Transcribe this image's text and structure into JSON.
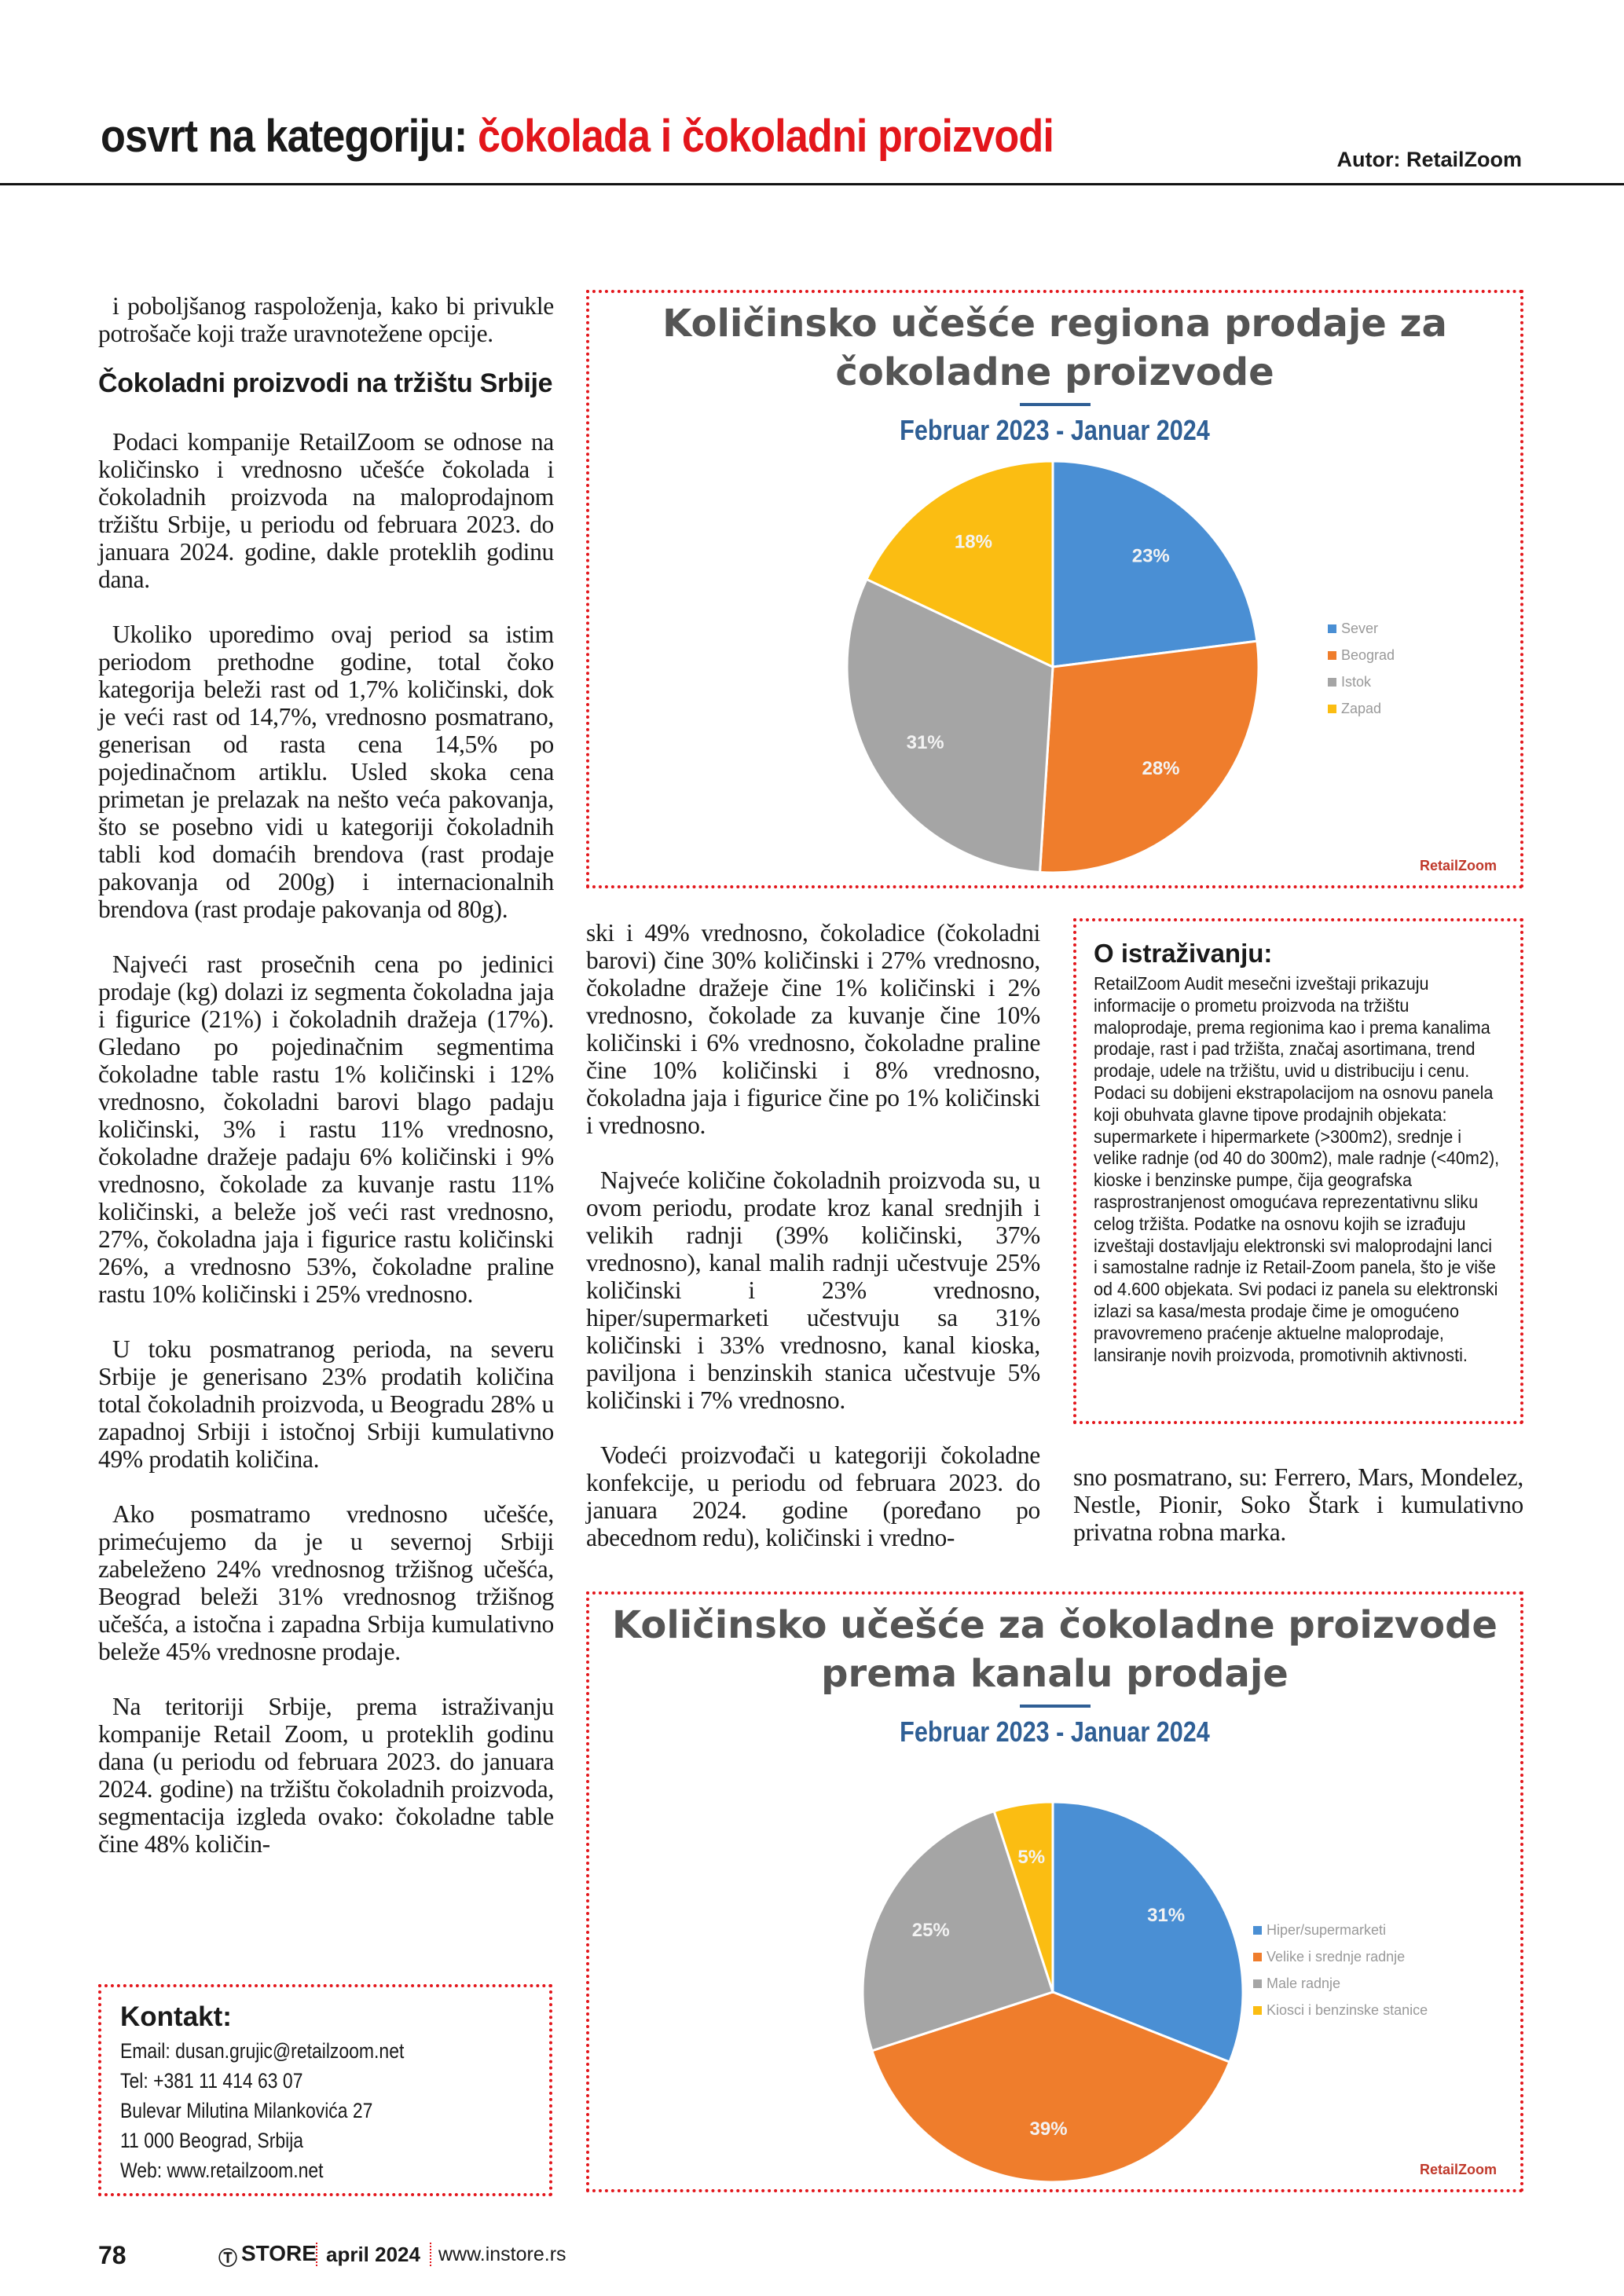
{
  "header": {
    "title_prefix": "osvrt na kategoriju:",
    "title_topic": "čokolada i čokoladni proizvodi",
    "author": "Autor: RetailZoom"
  },
  "left": {
    "intro": "i poboljšanog raspoloženja, kako bi privukle potrošače koji traže uravnotežene opcije.",
    "heading": "Čokoladni proizvodi na tržištu Srbije",
    "paragraphs": [
      "Podaci kompanije RetailZoom se odnose na količinsko i vrednosno učešće čokolada i čokoladnih proizvoda na maloprodajnom tržištu Srbije, u periodu od februara 2023. do januara 2024. godine, dakle proteklih godinu dana.",
      "Ukoliko uporedimo ovaj period sa istim periodom prethodne godine, total čoko kategorija beleži rast od 1,7% količinski, dok je veći rast od 14,7%, vrednosno posmatrano, generisan od rasta cena 14,5% po pojedinačnom artiklu. Usled skoka cena primetan je prelazak na nešto veća pakovanja, što se posebno vidi u kategoriji čokoladnih tabli kod domaćih brendova (rast prodaje pakovanja od 200g) i internacionalnih brendova (rast prodaje pakovanja od 80g).",
      "Najveći rast prosečnih cena po jedinici prodaje (kg) dolazi iz segmenta čokoladna jaja i figurice (21%) i čokoladnih dražeja (17%). Gledano po pojedinačnim segmentima čokoladne table rastu 1% količinski i 12% vrednosno, čokoladni barovi blago padaju količinski, 3% i rastu 11% vrednosno, čokoladne dražeje padaju 6% količinski i 9% vrednosno, čokolade za kuvanje rastu 11% količinski, a beleže još veći rast vrednosno, 27%, čokoladna jaja i figurice rastu količinski 26%, a vrednosno 53%, čokoladne praline rastu 10% količinski i 25% vrednosno.",
      "U toku posmatranog perioda, na severu Srbije je generisano 23% prodatih količina total čokoladnih proizvoda, u Beogradu 28% u zapadnoj Srbiji i istočnoj Srbiji kumulativno 49% prodatih količina.",
      "Ako posmatramo vrednosno učešće, primećujemo da je u severnoj Srbiji zabeleženo 24% vrednosnog tržišnog učešća, Beograd beleži 31% vrednosnog tržišnog učešća, a istočna i zapadna Srbija kumulativno beleže 45% vrednosne prodaje.",
      "Na teritoriji Srbije, prema istraživanju kompanije Retail Zoom, u proteklih godinu dana (u periodu od februara 2023. do januara 2024. godine) na tržištu čokoladnih proizvoda, segmentacija izgleda ovako: čokoladne table čine 48% količin-"
    ]
  },
  "middle": {
    "paragraphs": [
      "ski i 49% vrednosno, čokoladice (čokoladni barovi) čine 30% količinski i 27% vrednosno, čokoladne dražeje čine 1% količinski i 2% vrednosno, čokolade za kuvanje čine 10% količinski i 6% vrednosno, čokoladne praline čine 10% količinski i 8% vrednosno, čokoladna jaja i figurice čine po 1% količinski i vrednosno.",
      "Najveće količine čokoladnih proizvoda su, u ovom periodu, prodate kroz kanal srednjih i velikih radnji (39% količinski, 37% vrednosno), kanal malih radnji učestvuje 25% količinski i 23% vrednosno, hiper/supermarketi učestvuju sa 31% količinski i 33% vrednosno, kanal kioska, paviljona i benzinskih stanica učestvuje 5% količinski i 7% vrednosno.",
      "Vodeći proizvođači u kategoriji čokoladne konfekcije, u periodu od februara 2023. do januara 2024. godine (poređano po abecednom redu), količinski i vredno-"
    ]
  },
  "right": {
    "paragraph": "sno posmatrano, su: Ferrero, Mars, Mondelez, Nestle, Pionir, Soko Štark i kumulativno privatna robna marka."
  },
  "about": {
    "title": "O istraživanju:",
    "text": "RetailZoom Audit mesečni izveštaji prikazuju informacije o prometu proizvoda na tržištu maloprodaje, prema regionima kao i prema kanalima prodaje, rast i pad tržišta, značaj asortimana, trend prodaje, udele na tržištu, uvid u distribuciju i cenu. Podaci su dobijeni ekstrapolacijom na osnovu panela koji obuhvata glavne tipove prodajnih objekata: supermarkete i hipermarkete (>300m2), srednje i velike radnje (od 40 do 300m2), male radnje (<40m2), kioske i benzinske pumpe, čija geografska rasprostranjenost omogućava reprezentativnu sliku celog tržišta. Podatke na osnovu kojih se izrađuju izveštaji dostavljaju elektronski svi maloprodajni lanci i samostalne radnje iz Retail-Zoom panela, što je više od 4.600 objekata. Svi podaci iz panela su elektronski izlazi sa kasa/mesta prodaje čime je omogućeno pravovremeno praćenje aktuelne maloprodaje, lansiranje novih proizvoda, promotivnih aktivnosti."
  },
  "contact": {
    "title": "Kontakt:",
    "lines": [
      "Email: dusan.grujic@retailzoom.net",
      "Tel:   +381 11 414 63 07",
      "Bulevar Milutina Milankovića 27",
      "11 000 Beograd, Srbija",
      "Web: www.retailzoom.net"
    ]
  },
  "footer": {
    "page_number": "78",
    "brand": "STORE",
    "issue": "april 2024",
    "website": "www.instore.rs"
  },
  "logo_text": "RetailZoom",
  "chart_data": [
    {
      "type": "pie",
      "title": "Količinsko učešće regiona prodaje za čokoladne proizvode",
      "subtitle": "Februar 2023 - Januar 2024",
      "legend_position": "right",
      "categories": [
        "Sever",
        "Beograd",
        "Istok",
        "Zapad"
      ],
      "values": [
        23,
        28,
        31,
        18
      ],
      "labels": [
        "23%",
        "28%",
        "31%",
        "18%"
      ],
      "colors": [
        "#4a8fd4",
        "#ef7d2c",
        "#a5a5a5",
        "#fbbd12"
      ]
    },
    {
      "type": "pie",
      "title": "Količinsko učešće za čokoladne proizvode prema kanalu prodaje",
      "subtitle": "Februar 2023 - Januar 2024",
      "legend_position": "right",
      "categories": [
        "Hiper/supermarketi",
        "Velike i srednje radnje",
        "Male radnje",
        "Kiosci i benzinske stanice"
      ],
      "values": [
        31,
        39,
        25,
        5
      ],
      "labels": [
        "31%",
        "39%",
        "25%",
        "5%"
      ],
      "colors": [
        "#4a8fd4",
        "#ef7d2c",
        "#a5a5a5",
        "#fbbd12"
      ]
    }
  ]
}
